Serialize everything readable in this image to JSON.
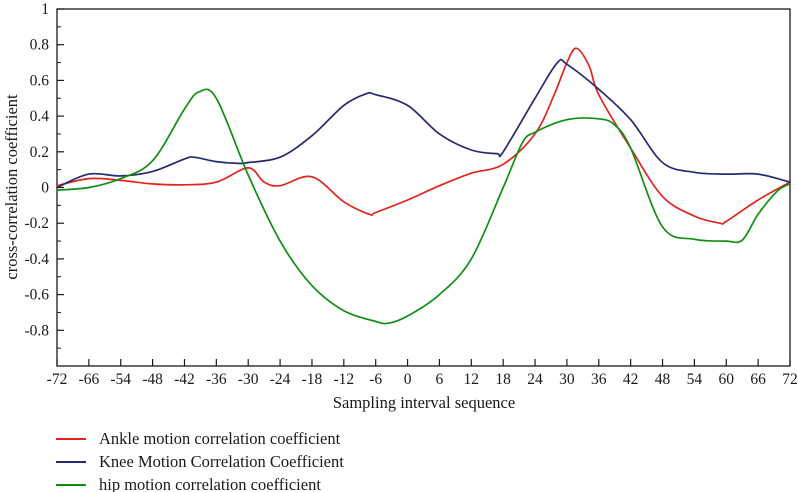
{
  "chart_data": {
    "type": "line",
    "title": "",
    "xlabel": "Sampling interval sequence",
    "ylabel": "cross-correlation coefficient",
    "ylim": [
      -1,
      1
    ],
    "y_major_tick_values": [
      1,
      0.8,
      0.6,
      0.4,
      0.2,
      0,
      -0.2,
      -0.4,
      -0.6,
      -0.8
    ],
    "y_major_tick_labels": [
      "1",
      "0.8",
      "0.6",
      "0.4",
      "0.2",
      "0",
      "-0.2",
      "-0.4",
      "-0.6",
      "-0.8"
    ],
    "y_minor_tick_values": [
      0.9,
      0.7,
      0.5,
      0.3,
      0.1,
      -0.1,
      -0.3,
      -0.5,
      -0.7,
      -0.9
    ],
    "x_tick_labels": [
      "-72",
      "-66",
      "-54",
      "-48",
      "-42",
      "-36",
      "-30",
      "-24",
      "-18",
      "-12",
      "-6",
      "0",
      "6",
      "12",
      "18",
      "24",
      "30",
      "36",
      "42",
      "48",
      "54",
      "60",
      "66",
      "72"
    ],
    "x_unit": "tick_index (ticks evenly spaced; points given as [tick_index, y])",
    "grid": "off",
    "legend_position": "below-left",
    "axis_color": "#1a1a1a",
    "series": [
      {
        "name": "Ankle motion correlation coefficient",
        "color": "#e0251e",
        "points": [
          [
            0,
            0.01
          ],
          [
            1,
            0.05
          ],
          [
            2,
            0.04
          ],
          [
            3,
            0.02
          ],
          [
            4,
            0.015
          ],
          [
            5,
            0.03
          ],
          [
            6,
            0.11
          ],
          [
            6.5,
            0.03
          ],
          [
            7,
            0.01
          ],
          [
            8,
            0.06
          ],
          [
            9,
            -0.08
          ],
          [
            9.8,
            -0.15
          ],
          [
            10,
            -0.14
          ],
          [
            11,
            -0.07
          ],
          [
            12,
            0.01
          ],
          [
            13,
            0.08
          ],
          [
            14,
            0.13
          ],
          [
            15,
            0.3
          ],
          [
            15.6,
            0.52
          ],
          [
            16,
            0.7
          ],
          [
            16.3,
            0.78
          ],
          [
            16.7,
            0.68
          ],
          [
            17,
            0.52
          ],
          [
            18,
            0.22
          ],
          [
            19,
            -0.05
          ],
          [
            20,
            -0.16
          ],
          [
            20.8,
            -0.2
          ],
          [
            21,
            -0.19
          ],
          [
            22,
            -0.07
          ],
          [
            23,
            0.03
          ]
        ]
      },
      {
        "name": "Knee Motion Correlation Coefficient",
        "color": "#27296f",
        "points": [
          [
            0,
            0.0
          ],
          [
            1,
            0.075
          ],
          [
            2,
            0.065
          ],
          [
            3,
            0.09
          ],
          [
            4,
            0.16
          ],
          [
            4.3,
            0.17
          ],
          [
            5,
            0.145
          ],
          [
            5.7,
            0.135
          ],
          [
            6,
            0.14
          ],
          [
            7,
            0.17
          ],
          [
            8,
            0.29
          ],
          [
            9,
            0.46
          ],
          [
            9.7,
            0.525
          ],
          [
            10,
            0.52
          ],
          [
            11,
            0.46
          ],
          [
            12,
            0.3
          ],
          [
            13,
            0.21
          ],
          [
            13.8,
            0.19
          ],
          [
            14,
            0.2
          ],
          [
            15,
            0.5
          ],
          [
            15.7,
            0.7
          ],
          [
            16,
            0.69
          ],
          [
            17,
            0.55
          ],
          [
            18,
            0.38
          ],
          [
            19,
            0.14
          ],
          [
            20,
            0.085
          ],
          [
            21,
            0.075
          ],
          [
            22,
            0.075
          ],
          [
            23,
            0.03
          ]
        ]
      },
      {
        "name": "hip motion correlation coefficient",
        "color": "#0f8f11",
        "points": [
          [
            0,
            -0.015
          ],
          [
            1,
            0.0
          ],
          [
            2,
            0.05
          ],
          [
            3,
            0.15
          ],
          [
            4,
            0.44
          ],
          [
            4.45,
            0.535
          ],
          [
            5,
            0.5
          ],
          [
            6,
            0.07
          ],
          [
            7,
            -0.3
          ],
          [
            8,
            -0.55
          ],
          [
            9,
            -0.69
          ],
          [
            10,
            -0.75
          ],
          [
            10.4,
            -0.76
          ],
          [
            11,
            -0.72
          ],
          [
            12,
            -0.6
          ],
          [
            13,
            -0.4
          ],
          [
            14,
            0.0
          ],
          [
            14.6,
            0.25
          ],
          [
            15,
            0.31
          ],
          [
            16,
            0.38
          ],
          [
            17,
            0.385
          ],
          [
            17.5,
            0.35
          ],
          [
            18,
            0.22
          ],
          [
            19,
            -0.22
          ],
          [
            20,
            -0.29
          ],
          [
            21,
            -0.3
          ],
          [
            21.5,
            -0.295
          ],
          [
            22,
            -0.15
          ],
          [
            22.6,
            -0.02
          ],
          [
            23,
            0.02
          ]
        ]
      }
    ]
  }
}
